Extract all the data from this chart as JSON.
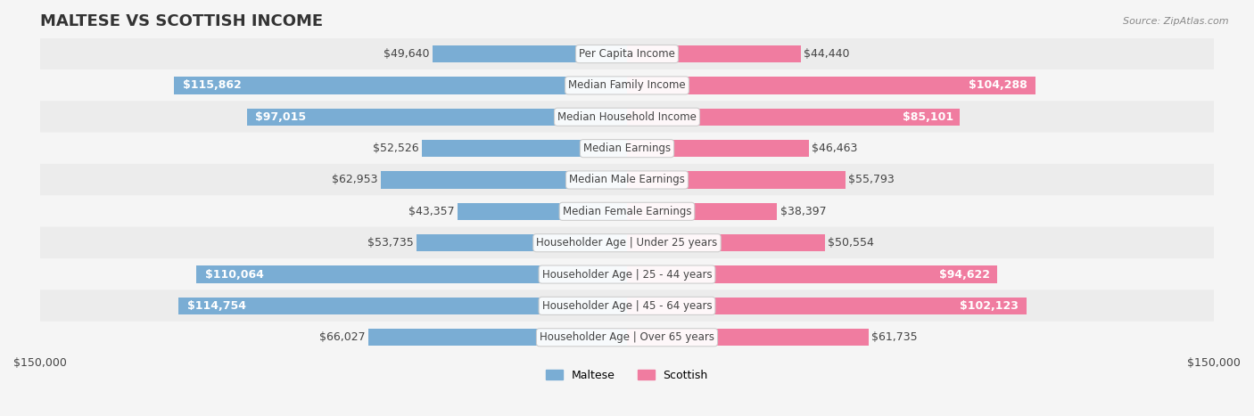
{
  "title": "MALTESE VS SCOTTISH INCOME",
  "source": "Source: ZipAtlas.com",
  "categories": [
    "Per Capita Income",
    "Median Family Income",
    "Median Household Income",
    "Median Earnings",
    "Median Male Earnings",
    "Median Female Earnings",
    "Householder Age | Under 25 years",
    "Householder Age | 25 - 44 years",
    "Householder Age | 45 - 64 years",
    "Householder Age | Over 65 years"
  ],
  "maltese_values": [
    49640,
    115862,
    97015,
    52526,
    62953,
    43357,
    53735,
    110064,
    114754,
    66027
  ],
  "scottish_values": [
    44440,
    104288,
    85101,
    46463,
    55793,
    38397,
    50554,
    94622,
    102123,
    61735
  ],
  "maltese_labels": [
    "$49,640",
    "$115,862",
    "$97,015",
    "$52,526",
    "$62,953",
    "$43,357",
    "$53,735",
    "$110,064",
    "$114,754",
    "$66,027"
  ],
  "scottish_labels": [
    "$44,440",
    "$104,288",
    "$85,101",
    "$46,463",
    "$55,793",
    "$38,397",
    "$50,554",
    "$94,622",
    "$102,123",
    "$61,735"
  ],
  "max_value": 150000,
  "maltese_color": "#7aadd4",
  "scottish_color": "#f07ca0",
  "maltese_color_dark": "#6699cc",
  "scottish_color_dark": "#ee6699",
  "bg_color": "#f5f5f5",
  "row_bg_light": "#f0f0f0",
  "row_bg_dark": "#e8e8e8",
  "bar_height": 0.55,
  "label_fontsize": 9,
  "title_fontsize": 13,
  "category_fontsize": 8.5,
  "bottom_label": "$150,000",
  "legend_maltese": "Maltese",
  "legend_scottish": "Scottish"
}
